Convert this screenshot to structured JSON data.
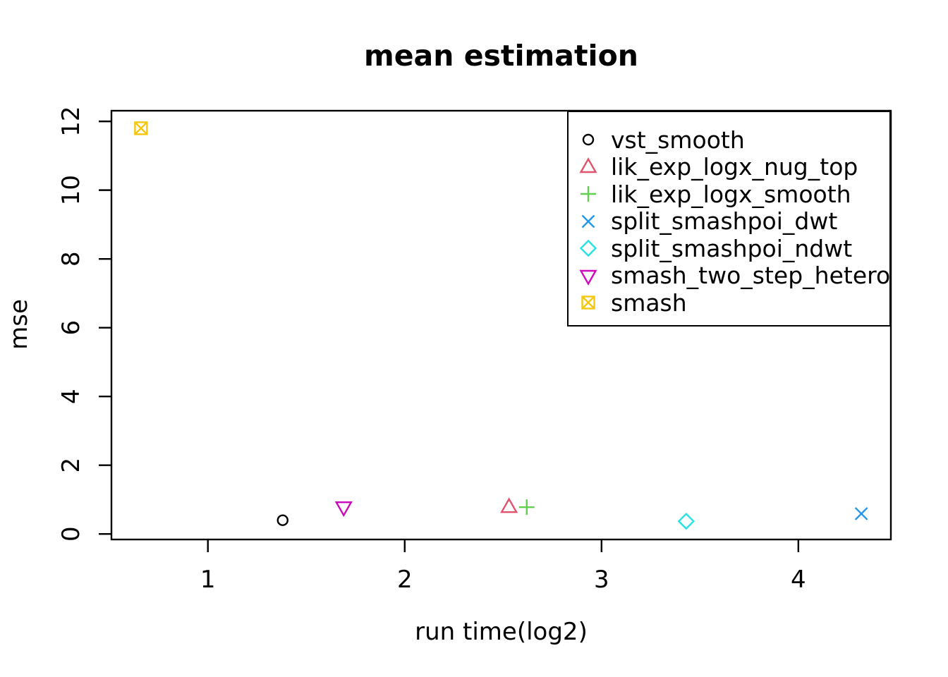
{
  "chart_data": {
    "type": "scatter",
    "title": "mean estimation",
    "xlabel": "run time(log2)",
    "ylabel": "mse",
    "xlim": [
      0.51,
      4.47
    ],
    "ylim": [
      -0.16,
      12.31
    ],
    "x_ticks": [
      1,
      2,
      3,
      4
    ],
    "y_ticks": [
      0,
      2,
      4,
      6,
      8,
      10,
      12
    ],
    "grid": false,
    "background": "#ffffff",
    "axis_color": "#000000",
    "legend_position": "topright",
    "series": [
      {
        "name": "vst_smooth",
        "marker": "circle",
        "color": "#000000",
        "points": [
          {
            "x": 1.38,
            "y": 0.4
          }
        ]
      },
      {
        "name": "lik_exp_logx_nug_top",
        "marker": "triangle-up",
        "color": "#DF536B",
        "points": [
          {
            "x": 2.53,
            "y": 0.78
          }
        ]
      },
      {
        "name": "lik_exp_logx_smooth",
        "marker": "plus",
        "color": "#61D04F",
        "points": [
          {
            "x": 2.62,
            "y": 0.78
          }
        ]
      },
      {
        "name": "split_smashpoi_dwt",
        "marker": "x",
        "color": "#2297E6",
        "points": [
          {
            "x": 4.32,
            "y": 0.59
          }
        ]
      },
      {
        "name": "split_smashpoi_ndwt",
        "marker": "diamond",
        "color": "#28E2E5",
        "points": [
          {
            "x": 3.43,
            "y": 0.37
          }
        ]
      },
      {
        "name": "smash_two_step_hetero",
        "marker": "triangle-down",
        "color": "#CD0BBC",
        "points": [
          {
            "x": 1.69,
            "y": 0.78
          }
        ]
      },
      {
        "name": "smash",
        "marker": "square-x",
        "color": "#F5C710",
        "points": [
          {
            "x": 0.66,
            "y": 11.8
          }
        ]
      }
    ]
  }
}
